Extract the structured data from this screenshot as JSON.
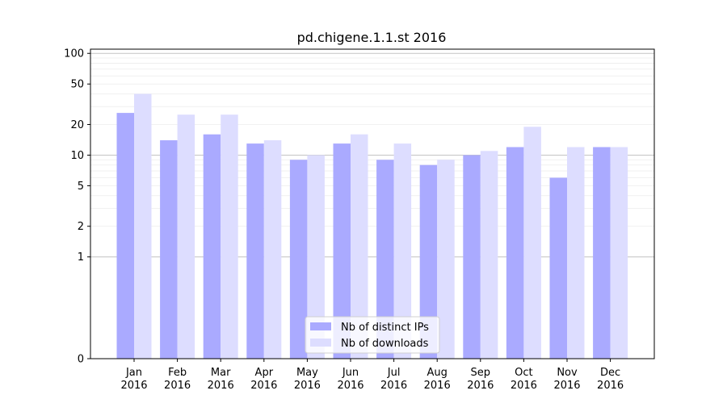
{
  "chart_data": {
    "type": "bar",
    "title": "pd.chigene.1.1.st 2016",
    "xlabel": "",
    "ylabel": "",
    "yscale": "symlog",
    "ylim": [
      0,
      110
    ],
    "yticks": [
      0,
      1,
      2,
      5,
      10,
      20,
      50,
      100
    ],
    "grid": true,
    "legend_position": "bottom-center",
    "categories": [
      [
        "Jan",
        "2016"
      ],
      [
        "Feb",
        "2016"
      ],
      [
        "Mar",
        "2016"
      ],
      [
        "Apr",
        "2016"
      ],
      [
        "May",
        "2016"
      ],
      [
        "Jun",
        "2016"
      ],
      [
        "Jul",
        "2016"
      ],
      [
        "Aug",
        "2016"
      ],
      [
        "Sep",
        "2016"
      ],
      [
        "Oct",
        "2016"
      ],
      [
        "Nov",
        "2016"
      ],
      [
        "Dec",
        "2016"
      ]
    ],
    "series": [
      {
        "name": "Nb of distinct IPs",
        "color": "#aaaaff",
        "values": [
          26,
          14,
          16,
          13,
          9,
          13,
          9,
          8,
          10,
          12,
          6,
          12
        ]
      },
      {
        "name": "Nb of downloads",
        "color": "#ddddff",
        "values": [
          40,
          25,
          25,
          14,
          10,
          16,
          13,
          9,
          11,
          19,
          12,
          12
        ]
      }
    ]
  }
}
